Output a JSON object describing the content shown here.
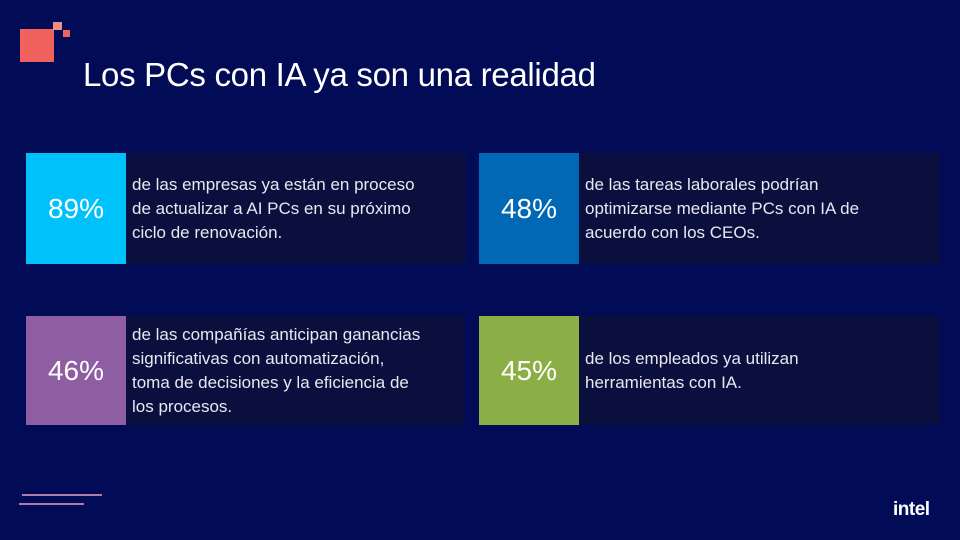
{
  "title": "Los PCs con IA ya son una realidad",
  "colors": {
    "background": "#020b55",
    "card": "#0b0f3e",
    "accent": "#f1625f",
    "cyan": "#00c2fb",
    "blue": "#0068b5",
    "purple": "#8f5da2",
    "green": "#8bae46"
  },
  "stats": [
    {
      "value": "89%",
      "lines": [
        "de las empresas ya están en proceso",
        "de actualizar a AI PCs en su próximo",
        "ciclo de renovación."
      ]
    },
    {
      "value": "48%",
      "lines": [
        "de las tareas laborales podrían",
        "optimizarse mediante PCs con IA de",
        "acuerdo con los CEOs."
      ]
    },
    {
      "value": "46%",
      "lines": [
        "de las compañías anticipan ganancias",
        "significativas con automatización,",
        "toma de decisiones y la eficiencia de",
        "los procesos."
      ]
    },
    {
      "value": "45%",
      "lines": [
        "de los empleados ya utilizan",
        "herramientas con IA."
      ]
    }
  ],
  "logo": "intel"
}
